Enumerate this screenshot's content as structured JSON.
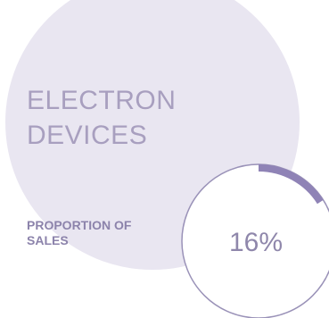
{
  "title_lines": [
    "ELECTRON",
    "DEVICES"
  ],
  "subtitle_lines": [
    "PROPORTION OF",
    "SALES"
  ],
  "colors": {
    "background_circle": "#e9e6f1",
    "title": "#a89fbf",
    "subtitle": "#8c83ab",
    "ring_track": "#9a92b8",
    "ring_fill": "#8f83b6",
    "value_text": "#8f87ab"
  },
  "chart_data": {
    "type": "pie",
    "labels": [
      "ELECTRON DEVICES"
    ],
    "values": [
      16
    ],
    "value_label": "16%",
    "total": 100
  }
}
